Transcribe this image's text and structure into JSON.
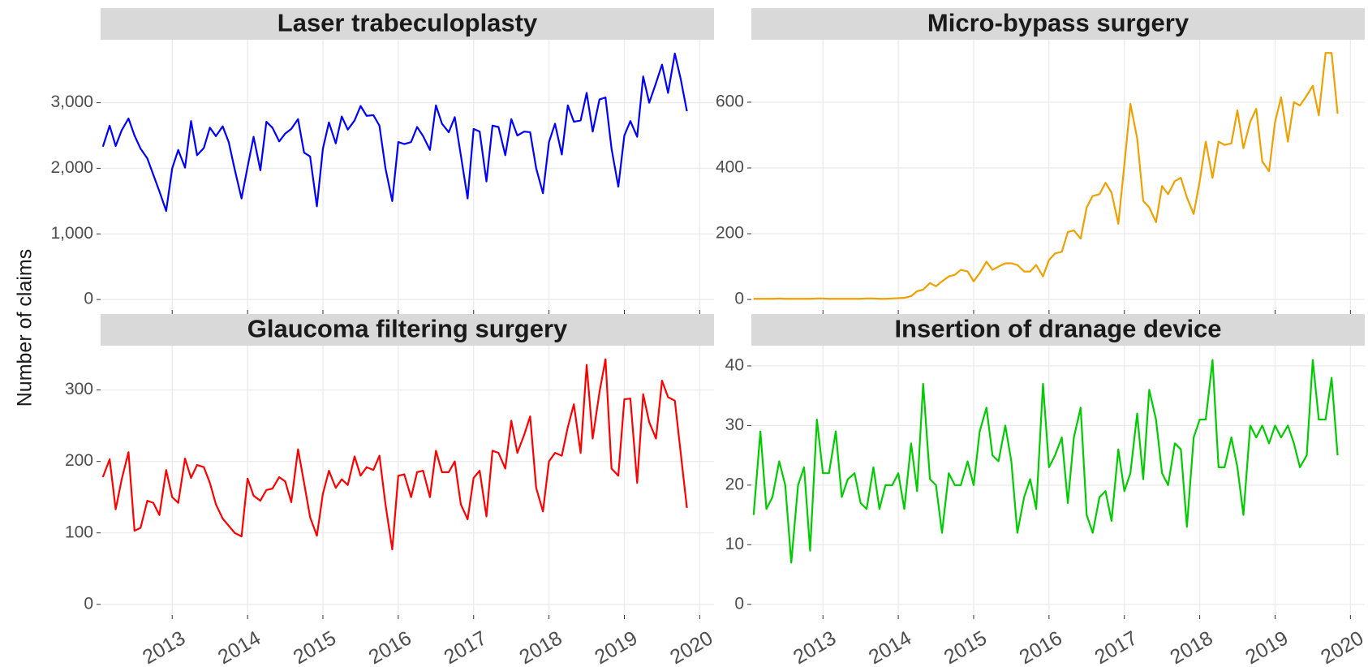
{
  "ylabel": "Number of claims",
  "chart_data": [
    {
      "type": "line",
      "title": "Laser trabeculoplasty",
      "color": "#0000ff",
      "x": [
        2012.08,
        2012.17,
        2012.25,
        2012.33,
        2012.42,
        2012.5,
        2012.58,
        2012.67,
        2012.75,
        2012.83,
        2012.92,
        2013,
        2013.08,
        2013.17,
        2013.25,
        2013.33,
        2013.42,
        2013.5,
        2013.58,
        2013.67,
        2013.75,
        2013.83,
        2013.92,
        2014,
        2014.08,
        2014.17,
        2014.25,
        2014.33,
        2014.42,
        2014.5,
        2014.58,
        2014.67,
        2014.75,
        2014.83,
        2014.92,
        2015,
        2015.08,
        2015.17,
        2015.25,
        2015.33,
        2015.42,
        2015.5,
        2015.58,
        2015.67,
        2015.75,
        2015.83,
        2015.92,
        2016,
        2016.08,
        2016.17,
        2016.25,
        2016.33,
        2016.42,
        2016.5,
        2016.58,
        2016.67,
        2016.75,
        2016.83,
        2016.92,
        2017,
        2017.08,
        2017.17,
        2017.25,
        2017.33,
        2017.42,
        2017.5,
        2017.58,
        2017.67,
        2017.75,
        2017.83,
        2017.92,
        2018,
        2018.08,
        2018.17,
        2018.25,
        2018.33,
        2018.42,
        2018.5,
        2018.58,
        2018.67,
        2018.75,
        2018.83,
        2018.92,
        2019,
        2019.08,
        2019.17,
        2019.25,
        2019.33,
        2019.42,
        2019.5,
        2019.58,
        2019.67,
        2019.75,
        2019.83
      ],
      "values": [
        2330,
        2650,
        2340,
        2580,
        2760,
        2500,
        2300,
        2150,
        1900,
        1650,
        1350,
        2000,
        2280,
        2010,
        2720,
        2200,
        2310,
        2620,
        2490,
        2640,
        2400,
        1980,
        1540,
        2020,
        2480,
        1970,
        2710,
        2620,
        2410,
        2530,
        2600,
        2750,
        2240,
        2180,
        1420,
        2300,
        2700,
        2380,
        2790,
        2590,
        2730,
        2950,
        2800,
        2810,
        2650,
        2000,
        1500,
        2400,
        2370,
        2400,
        2630,
        2490,
        2280,
        2960,
        2680,
        2550,
        2780,
        2200,
        1540,
        2600,
        2560,
        1800,
        2650,
        2630,
        2200,
        2750,
        2500,
        2560,
        2550,
        2000,
        1620,
        2400,
        2680,
        2210,
        2960,
        2710,
        2730,
        3150,
        2560,
        3050,
        3080,
        2300,
        1720,
        2500,
        2720,
        2480,
        3400,
        3000,
        3300,
        3580,
        3150,
        3750,
        3350,
        2870
      ],
      "xlim": [
        2012.05,
        2020.19
      ],
      "xticks": [
        2013,
        2014,
        2015,
        2016,
        2017,
        2018,
        2019,
        2020
      ],
      "ylim": [
        -160,
        3960
      ],
      "yticks": [
        0,
        {
          "value": 1000,
          "label": "1,000"
        },
        {
          "value": 2000,
          "label": "2,000"
        },
        {
          "value": 3000,
          "label": "3,000"
        }
      ],
      "grid": true
    },
    {
      "type": "line",
      "title": "Micro-bypass surgery",
      "color": "#f0a000",
      "x": [
        2012.08,
        2012.17,
        2012.25,
        2012.33,
        2012.42,
        2012.5,
        2012.58,
        2012.67,
        2012.75,
        2012.83,
        2012.92,
        2013,
        2013.08,
        2013.17,
        2013.25,
        2013.33,
        2013.42,
        2013.5,
        2013.58,
        2013.67,
        2013.75,
        2013.83,
        2013.92,
        2014,
        2014.08,
        2014.17,
        2014.25,
        2014.33,
        2014.42,
        2014.5,
        2014.58,
        2014.67,
        2014.75,
        2014.83,
        2014.92,
        2015,
        2015.08,
        2015.17,
        2015.25,
        2015.33,
        2015.42,
        2015.5,
        2015.58,
        2015.67,
        2015.75,
        2015.83,
        2015.92,
        2016,
        2016.08,
        2016.17,
        2016.25,
        2016.33,
        2016.42,
        2016.5,
        2016.58,
        2016.67,
        2016.75,
        2016.83,
        2016.92,
        2017,
        2017.08,
        2017.17,
        2017.25,
        2017.33,
        2017.42,
        2017.5,
        2017.58,
        2017.67,
        2017.75,
        2017.83,
        2017.92,
        2018,
        2018.08,
        2018.17,
        2018.25,
        2018.33,
        2018.42,
        2018.5,
        2018.58,
        2018.67,
        2018.75,
        2018.83,
        2018.92,
        2019,
        2019.08,
        2019.17,
        2019.25,
        2019.33,
        2019.42,
        2019.5,
        2019.58,
        2019.67,
        2019.75,
        2019.83
      ],
      "values": [
        2,
        2,
        2,
        2,
        3,
        2,
        2,
        2,
        2,
        2,
        3,
        3,
        2,
        2,
        2,
        2,
        2,
        2,
        3,
        3,
        2,
        2,
        3,
        4,
        5,
        10,
        25,
        30,
        50,
        40,
        55,
        70,
        75,
        90,
        85,
        55,
        80,
        115,
        90,
        100,
        110,
        110,
        105,
        85,
        85,
        105,
        70,
        120,
        140,
        145,
        205,
        210,
        185,
        280,
        315,
        320,
        355,
        325,
        230,
        410,
        595,
        490,
        300,
        280,
        235,
        345,
        320,
        360,
        370,
        310,
        260,
        360,
        480,
        370,
        480,
        470,
        475,
        575,
        460,
        540,
        580,
        420,
        390,
        540,
        615,
        480,
        600,
        590,
        620,
        650,
        560,
        750,
        750,
        565
      ],
      "xlim": [
        2012.05,
        2020.19
      ],
      "xticks": [
        2013,
        2014,
        2015,
        2016,
        2017,
        2018,
        2019,
        2020
      ],
      "ylim": [
        -32,
        790
      ],
      "yticks": [
        0,
        200,
        400,
        600
      ],
      "grid": true
    },
    {
      "type": "line",
      "title": "Glaucoma filtering surgery",
      "color": "#ff0000",
      "x": [
        2012.08,
        2012.17,
        2012.25,
        2012.33,
        2012.42,
        2012.5,
        2012.58,
        2012.67,
        2012.75,
        2012.83,
        2012.92,
        2013,
        2013.08,
        2013.17,
        2013.25,
        2013.33,
        2013.42,
        2013.5,
        2013.58,
        2013.67,
        2013.75,
        2013.83,
        2013.92,
        2014,
        2014.08,
        2014.17,
        2014.25,
        2014.33,
        2014.42,
        2014.5,
        2014.58,
        2014.67,
        2014.75,
        2014.83,
        2014.92,
        2015,
        2015.08,
        2015.17,
        2015.25,
        2015.33,
        2015.42,
        2015.5,
        2015.58,
        2015.67,
        2015.75,
        2015.83,
        2015.92,
        2016,
        2016.08,
        2016.17,
        2016.25,
        2016.33,
        2016.42,
        2016.5,
        2016.58,
        2016.67,
        2016.75,
        2016.83,
        2016.92,
        2017,
        2017.08,
        2017.17,
        2017.25,
        2017.33,
        2017.42,
        2017.5,
        2017.58,
        2017.67,
        2017.75,
        2017.83,
        2017.92,
        2018,
        2018.08,
        2018.17,
        2018.25,
        2018.33,
        2018.42,
        2018.5,
        2018.58,
        2018.67,
        2018.75,
        2018.83,
        2018.92,
        2019,
        2019.08,
        2019.17,
        2019.25,
        2019.33,
        2019.42,
        2019.5,
        2019.58,
        2019.67,
        2019.75,
        2019.83
      ],
      "values": [
        178,
        203,
        133,
        175,
        213,
        103,
        107,
        145,
        142,
        125,
        188,
        150,
        142,
        204,
        177,
        195,
        192,
        170,
        140,
        120,
        110,
        100,
        95,
        176,
        152,
        145,
        160,
        162,
        178,
        172,
        143,
        217,
        170,
        122,
        96,
        155,
        187,
        163,
        175,
        167,
        207,
        180,
        192,
        188,
        208,
        140,
        77,
        180,
        182,
        150,
        185,
        187,
        150,
        215,
        185,
        185,
        200,
        140,
        119,
        177,
        187,
        123,
        215,
        212,
        190,
        257,
        212,
        237,
        263,
        163,
        130,
        200,
        212,
        208,
        248,
        280,
        212,
        335,
        232,
        297,
        343,
        190,
        180,
        287,
        288,
        170,
        294,
        255,
        232,
        313,
        290,
        285,
        210,
        135
      ],
      "xlim": [
        2012.05,
        2020.19
      ],
      "xticks": [
        2013,
        2014,
        2015,
        2016,
        2017,
        2018,
        2019,
        2020
      ],
      "ylim": [
        -15,
        362
      ],
      "yticks": [
        0,
        100,
        200,
        300
      ],
      "grid": true
    },
    {
      "type": "line",
      "title": "Insertion of dranage device",
      "color": "#00cc00",
      "x": [
        2012.08,
        2012.17,
        2012.25,
        2012.33,
        2012.42,
        2012.5,
        2012.58,
        2012.67,
        2012.75,
        2012.83,
        2012.92,
        2013,
        2013.08,
        2013.17,
        2013.25,
        2013.33,
        2013.42,
        2013.5,
        2013.58,
        2013.67,
        2013.75,
        2013.83,
        2013.92,
        2014,
        2014.08,
        2014.17,
        2014.25,
        2014.33,
        2014.42,
        2014.5,
        2014.58,
        2014.67,
        2014.75,
        2014.83,
        2014.92,
        2015,
        2015.08,
        2015.17,
        2015.25,
        2015.33,
        2015.42,
        2015.5,
        2015.58,
        2015.67,
        2015.75,
        2015.83,
        2015.92,
        2016,
        2016.08,
        2016.17,
        2016.25,
        2016.33,
        2016.42,
        2016.5,
        2016.58,
        2016.67,
        2016.75,
        2016.83,
        2016.92,
        2017,
        2017.08,
        2017.17,
        2017.25,
        2017.33,
        2017.42,
        2017.5,
        2017.58,
        2017.67,
        2017.75,
        2017.83,
        2017.92,
        2018,
        2018.08,
        2018.17,
        2018.25,
        2018.33,
        2018.42,
        2018.5,
        2018.58,
        2018.67,
        2018.75,
        2018.83,
        2018.92,
        2019,
        2019.08,
        2019.17,
        2019.25,
        2019.33,
        2019.42,
        2019.5,
        2019.58,
        2019.67,
        2019.75,
        2019.83
      ],
      "values": [
        15,
        29,
        16,
        18,
        24,
        20,
        7,
        20,
        23,
        9,
        31,
        22,
        22,
        29,
        18,
        21,
        22,
        17,
        16,
        23,
        16,
        20,
        20,
        22,
        16,
        27,
        19,
        37,
        21,
        20,
        12,
        22,
        20,
        20,
        24,
        20,
        29,
        33,
        25,
        24,
        30,
        24,
        12,
        18,
        21,
        16,
        37,
        23,
        25,
        28,
        17,
        28,
        33,
        15,
        12,
        18,
        19,
        14,
        26,
        19,
        22,
        32,
        21,
        36,
        31,
        22,
        20,
        27,
        26,
        13,
        28,
        31,
        31,
        41,
        23,
        23,
        28,
        23,
        15,
        30,
        28,
        30,
        27,
        30,
        28,
        30,
        27,
        23,
        25,
        41,
        31,
        31,
        38,
        25
      ],
      "xlim": [
        2012.05,
        2020.19
      ],
      "xticks": [
        2013,
        2014,
        2015,
        2016,
        2017,
        2018,
        2019,
        2020
      ],
      "ylim": [
        -1.8,
        43.4
      ],
      "yticks": [
        0,
        10,
        20,
        30,
        40
      ],
      "grid": true
    }
  ]
}
